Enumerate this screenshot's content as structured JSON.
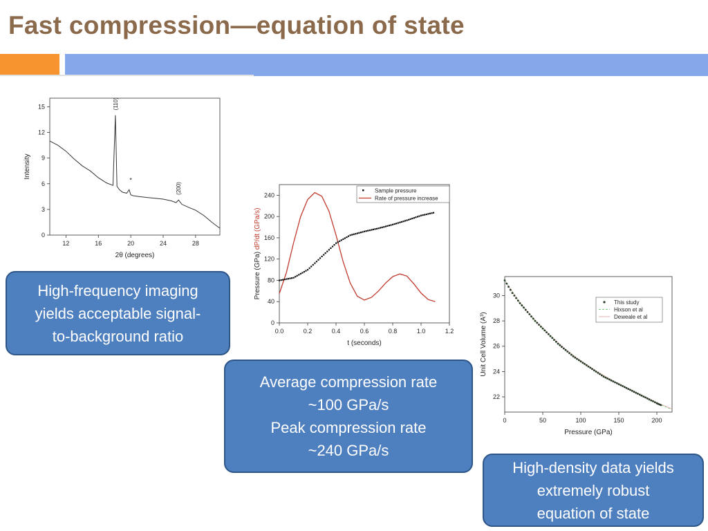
{
  "slide": {
    "title": "Fast compression—equation of state"
  },
  "callouts": {
    "imaging": [
      "High-frequency imaging",
      "yields acceptable signal-",
      "to-background ratio"
    ],
    "rate": [
      "Average compression rate",
      "~100 GPa/s",
      "Peak compression rate",
      "~240 GPa/s"
    ],
    "density": [
      "High-density data yields",
      "extremely robust",
      "equation of state"
    ]
  },
  "colors": {
    "title": "#8b6a4c",
    "accent_orange": "#f7942f",
    "accent_blue": "#85a8ea",
    "callout_fill": "#4e7fbf",
    "rate_curve": "#c0392b"
  },
  "chart_data": [
    {
      "type": "line",
      "xlabel": "2θ (degrees)",
      "ylabel": "Intensity",
      "xlim": [
        10,
        31
      ],
      "ylim": [
        0,
        16
      ],
      "xticks": [
        "12",
        "16",
        "20",
        "24",
        "28"
      ],
      "yticks": [
        "0",
        "3",
        "6",
        "9",
        "12",
        "15"
      ],
      "annotations": [
        "(110)",
        "*",
        "(200)"
      ],
      "series": [
        {
          "x": [
            10,
            11,
            12,
            13,
            14,
            15,
            16,
            17,
            17.8,
            18.1,
            18.3,
            18.6,
            19,
            19.5,
            19.8,
            20,
            20.3,
            21,
            22,
            23,
            24,
            25,
            25.6,
            25.9,
            26.3,
            27,
            28,
            29,
            30,
            31
          ],
          "y": [
            11,
            10.5,
            9.8,
            8.9,
            8.1,
            7.5,
            6.7,
            6.1,
            5.8,
            14,
            5.7,
            5.3,
            5.0,
            4.9,
            5.3,
            4.7,
            4.6,
            4.5,
            4.4,
            4.3,
            4.2,
            4.0,
            3.8,
            4.1,
            3.6,
            3.3,
            2.9,
            2.3,
            1.5,
            0.8
          ]
        }
      ]
    },
    {
      "type": "line",
      "xlabel": "t (seconds)",
      "ylabel": "Pressure (GPa)",
      "ylabel2": "dP/dt (GPa/s)",
      "xlim": [
        0,
        1.2
      ],
      "ylim": [
        0,
        260
      ],
      "xticks": [
        "0.0",
        "0.2",
        "0.4",
        "0.6",
        "0.8",
        "1.0",
        "1.2"
      ],
      "yticks": [
        "0",
        "40",
        "80",
        "120",
        "160",
        "200",
        "240"
      ],
      "legend": "top-right",
      "series": [
        {
          "name": "Sample pressure",
          "x": [
            0,
            0.1,
            0.2,
            0.3,
            0.4,
            0.5,
            0.6,
            0.7,
            0.8,
            0.9,
            1.0,
            1.1
          ],
          "y": [
            80,
            85,
            100,
            125,
            150,
            165,
            172,
            178,
            185,
            193,
            202,
            208
          ]
        },
        {
          "name": "Rate of pressure increase",
          "x": [
            0,
            0.05,
            0.1,
            0.15,
            0.2,
            0.25,
            0.3,
            0.35,
            0.4,
            0.45,
            0.5,
            0.55,
            0.6,
            0.65,
            0.7,
            0.75,
            0.8,
            0.85,
            0.9,
            0.95,
            1.0,
            1.05,
            1.1
          ],
          "y": [
            55,
            95,
            150,
            200,
            232,
            245,
            238,
            210,
            165,
            115,
            75,
            50,
            43,
            48,
            60,
            75,
            87,
            92,
            88,
            73,
            56,
            44,
            40
          ]
        }
      ]
    },
    {
      "type": "scatter",
      "xlabel": "Pressure (GPa)",
      "ylabel": "Unit Cell Volume (A³)",
      "xlim": [
        0,
        220
      ],
      "ylim": [
        20.8,
        31.5
      ],
      "xticks": [
        "0",
        "50",
        "100",
        "150",
        "200"
      ],
      "yticks": [
        "22",
        "24",
        "26",
        "28",
        "30"
      ],
      "legend": "top-right",
      "series": [
        {
          "name": "This study",
          "x": [
            0,
            10,
            20,
            30,
            40,
            50,
            60,
            70,
            80,
            90,
            100,
            110,
            120,
            130,
            140,
            150,
            160,
            170,
            180,
            190,
            200,
            207
          ],
          "y": [
            31.2,
            30.2,
            29.4,
            28.7,
            28.0,
            27.4,
            26.8,
            26.2,
            25.7,
            25.2,
            24.8,
            24.4,
            24.0,
            23.6,
            23.3,
            23.0,
            22.7,
            22.4,
            22.1,
            21.8,
            21.5,
            21.3
          ]
        },
        {
          "name": "Hixson et al",
          "x": [
            0,
            20,
            40,
            60,
            80,
            100,
            120,
            140,
            160,
            180,
            200,
            220
          ],
          "y": [
            31.2,
            29.4,
            28.0,
            26.8,
            25.7,
            24.8,
            24.0,
            23.3,
            22.7,
            22.1,
            21.5,
            21.0
          ]
        },
        {
          "name": "Deweale et al",
          "x": [
            0,
            20,
            40,
            60,
            80,
            100,
            120,
            140,
            160,
            180,
            200,
            220
          ],
          "y": [
            31.2,
            29.45,
            28.05,
            26.85,
            25.75,
            24.85,
            24.05,
            23.35,
            22.75,
            22.15,
            21.55,
            21.05
          ]
        }
      ]
    }
  ]
}
